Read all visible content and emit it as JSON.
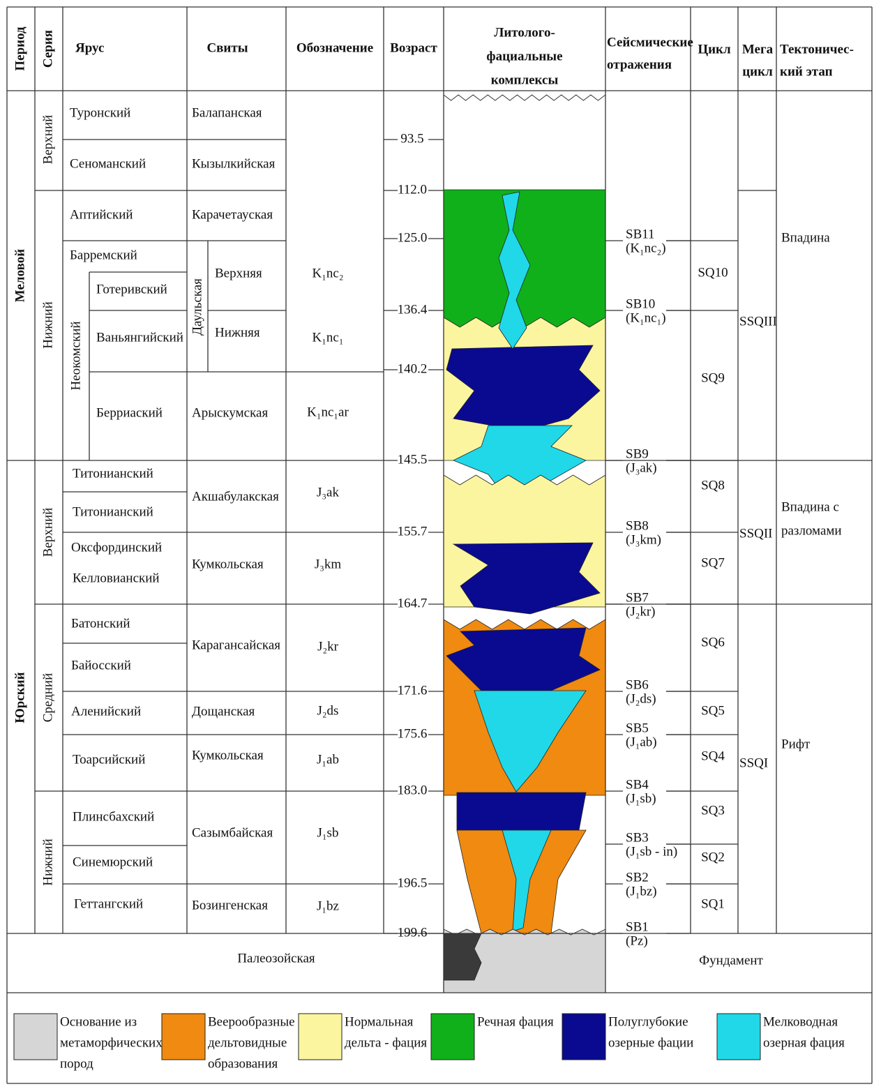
{
  "header": {
    "period": "Период",
    "series": "Серия",
    "stage": "Ярус",
    "formations": "Свиты",
    "notation": "Обозначение",
    "age": "Возраст",
    "lithofacies": [
      "Литолого-",
      "фациальные",
      "комплексы"
    ],
    "seismic": [
      "Сейсмические",
      "отражения"
    ],
    "cycle": "Цикл",
    "megacycle": [
      "Мега",
      "цикл"
    ],
    "tectonic": [
      "Тектоничес-",
      "кий этап"
    ]
  },
  "periods": [
    "Меловой",
    "Юрский"
  ],
  "series": [
    "Верхний",
    "Нижний",
    "Верхний",
    "Средний",
    "Нижний"
  ],
  "substage": "Неокомский",
  "stages": [
    "Туронский",
    "Сеноманский",
    "Аптийский",
    "Барремский",
    "Готеривский",
    "Ваньянгийский",
    "Берриаский",
    "Титонианский",
    "Титонианский",
    "Оксфординский",
    "Келловианский",
    "Батонский",
    "Байосский",
    "Аленийский",
    "Тоарсийский",
    "Плинсбахский",
    "Синемюрский",
    "Геттангский"
  ],
  "formations": [
    "Балапанская",
    "Кызылкийская",
    "Карачетауская",
    "Арыскумская",
    "Акшабулакская",
    "Кумкольская",
    "Карагансайская",
    "Дощанская",
    "Кумкольская",
    "Сазымбайская",
    "Бозингенская"
  ],
  "subformation": {
    "name": "Даульская",
    "upper": "Верхняя",
    "lower": "Нижняя"
  },
  "notations": [
    "K₁nc₂",
    "K₁nc₁",
    "K₁nc₁ar",
    "J₃ak",
    "J₃km",
    "J₂kr",
    "J₂ds",
    "J₁ab",
    "J₁sb",
    "J₁bz"
  ],
  "ages": [
    "93.5",
    "112.0",
    "125.0",
    "136.4",
    "140.2",
    "145.5",
    "155.7",
    "164.7",
    "171.6",
    "175.6",
    "183.0",
    "196.5",
    "199.6"
  ],
  "seismic": [
    {
      "name": "SB11",
      "code": "(K₁nc₂)"
    },
    {
      "name": "SB10",
      "code": "(K₁nc₁)"
    },
    {
      "name": "SB9",
      "code": "(J₃ak)"
    },
    {
      "name": "SB8",
      "code": "(J₃km)"
    },
    {
      "name": "SB7",
      "code": "(J₂kr)"
    },
    {
      "name": "SB6",
      "code": "(J₂ds)"
    },
    {
      "name": "SB5",
      "code": "(J₁ab)"
    },
    {
      "name": "SB4",
      "code": "(J₁sb)"
    },
    {
      "name": "SB3",
      "code": "(J₁sb - in)"
    },
    {
      "name": "SB2",
      "code": "(J₁bz)"
    },
    {
      "name": "SB1",
      "code": "(Pz)"
    }
  ],
  "cycles": [
    "SQ10",
    "SQ9",
    "SQ8",
    "SQ7",
    "SQ6",
    "SQ5",
    "SQ4",
    "SQ3",
    "SQ2",
    "SQ1"
  ],
  "megacycles": [
    "SSQIII",
    "SSQII",
    "SSQI"
  ],
  "tectonic": [
    [
      "Впадина"
    ],
    [
      "Впадина с",
      "разломами"
    ],
    [
      "Рифт"
    ]
  ],
  "basement": {
    "left": "Палеозойская",
    "right": "Фундамент"
  },
  "legend": [
    {
      "label": [
        "Основание из",
        "метаморфических",
        "пород"
      ],
      "color": "#d6d6d6"
    },
    {
      "label": [
        "Веерообразные",
        "дельтовидные",
        "образования"
      ],
      "color": "#f08a10"
    },
    {
      "label": [
        "Нормальная",
        "дельта - фация"
      ],
      "color": "#fbf5a0"
    },
    {
      "label": [
        "Речная фация"
      ],
      "color": "#10b01a"
    },
    {
      "label": [
        "Полуглубокие",
        "озерные фации"
      ],
      "color": "#0a0a90"
    },
    {
      "label": [
        "Мелководная",
        "озерная фация"
      ],
      "color": "#20d8e8"
    }
  ]
}
